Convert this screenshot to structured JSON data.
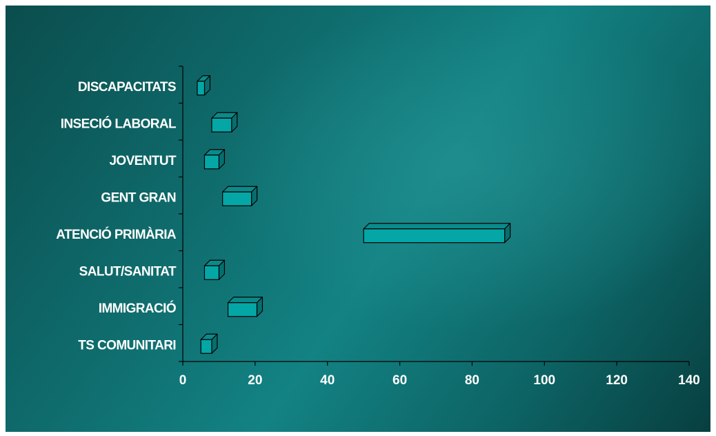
{
  "chart_data": {
    "type": "bar",
    "orientation": "horizontal",
    "style": "floating-3d",
    "categories": [
      "DISCAPACITATS",
      "INSECIÓ LABORAL",
      "JOVENTUT",
      "GENT GRAN",
      "ATENCIÓ PRIMÀRIA",
      "SALUT/SANITAT",
      "IMMIGRACIÓ",
      "TS COMUNITARI"
    ],
    "ranges": [
      [
        4,
        6
      ],
      [
        8,
        13.5
      ],
      [
        6,
        10
      ],
      [
        11,
        19
      ],
      [
        50,
        89
      ],
      [
        6,
        10
      ],
      [
        12.5,
        20.5
      ],
      [
        5,
        8
      ]
    ],
    "title": "",
    "xlabel": "",
    "ylabel": "",
    "xlim": [
      0,
      140
    ],
    "xticks": [
      "0",
      "20",
      "40",
      "60",
      "80",
      "100",
      "120",
      "140"
    ],
    "grid": false,
    "legend": "none",
    "colors": {
      "bar_front": "#05a6a6",
      "bar_top": "#0a8a8a",
      "bar_side": "#066e6e",
      "bar_edge": "#000000",
      "axis": "#000000",
      "text": "#ffffff"
    }
  }
}
